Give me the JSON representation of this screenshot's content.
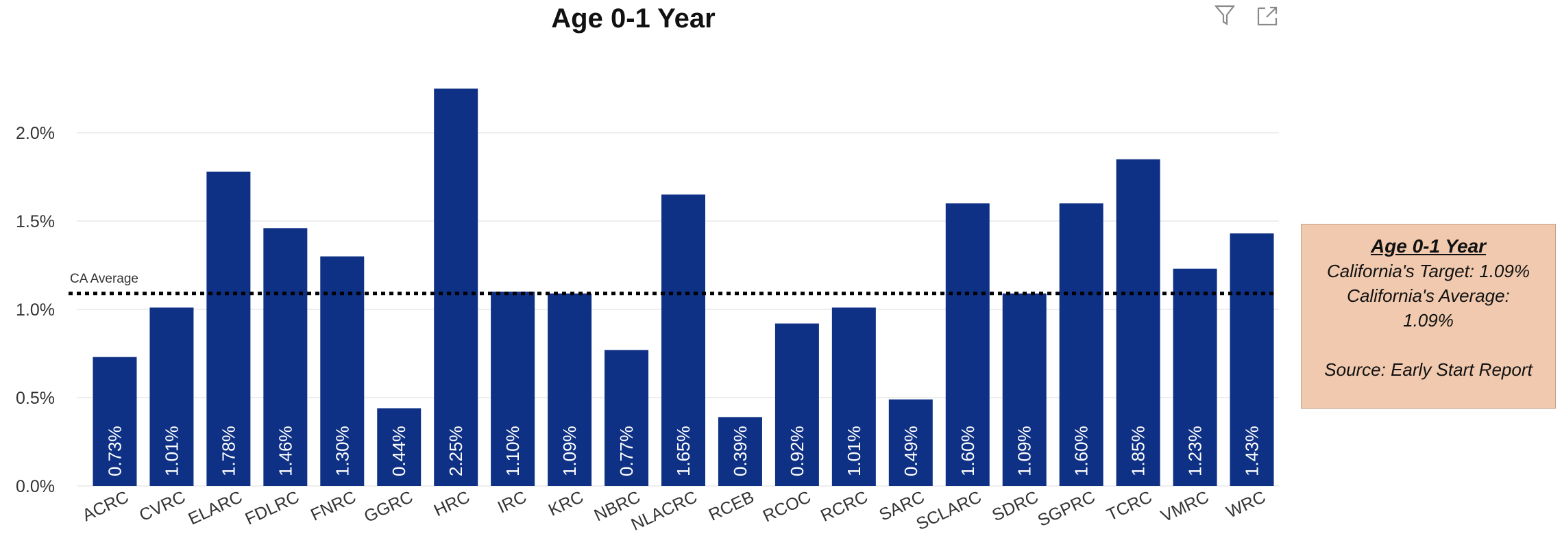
{
  "chart_data": {
    "type": "bar",
    "title": "Age 0-1 Year",
    "categories": [
      "ACRC",
      "CVRC",
      "ELARC",
      "FDLRC",
      "FNRC",
      "GGRC",
      "HRC",
      "IRC",
      "KRC",
      "NBRC",
      "NLACRC",
      "RCEB",
      "RCOC",
      "RCRC",
      "SARC",
      "SCLARC",
      "SDRC",
      "SGPRC",
      "TCRC",
      "VMRC",
      "WRC"
    ],
    "values": [
      0.73,
      1.01,
      1.78,
      1.46,
      1.3,
      0.44,
      2.25,
      1.1,
      1.09,
      0.77,
      1.65,
      0.39,
      0.92,
      1.01,
      0.49,
      1.6,
      1.09,
      1.6,
      1.85,
      1.23,
      1.43
    ],
    "value_labels": [
      "0.73%",
      "1.01%",
      "1.78%",
      "1.46%",
      "1.30%",
      "0.44%",
      "2.25%",
      "1.10%",
      "1.09%",
      "0.77%",
      "1.65%",
      "0.39%",
      "0.92%",
      "1.01%",
      "0.49%",
      "1.60%",
      "1.09%",
      "1.60%",
      "1.85%",
      "1.23%",
      "1.43%"
    ],
    "y_ticks": [
      0,
      0.5,
      1.0,
      1.5,
      2.0
    ],
    "y_tick_labels": [
      "0.0%",
      "0.5%",
      "1.0%",
      "1.5%",
      "2.0%"
    ],
    "ylim": [
      0,
      2.3
    ],
    "reference_line": {
      "label": "CA Average",
      "value": 1.09,
      "style": "dotted"
    },
    "bar_color": "#0f3185",
    "grid": true,
    "xlabel": "",
    "ylabel": ""
  },
  "toolbar": {
    "filter_icon": "filter-icon",
    "focus_icon": "focus-mode-icon"
  },
  "info_box": {
    "title": "Age 0-1 Year",
    "target_line": "California's Target: 1.09%",
    "average_line_1": "California's Average:",
    "average_line_2": "1.09%",
    "source_line": "Source: Early Start Report",
    "background_color": "#f0c9ae"
  }
}
